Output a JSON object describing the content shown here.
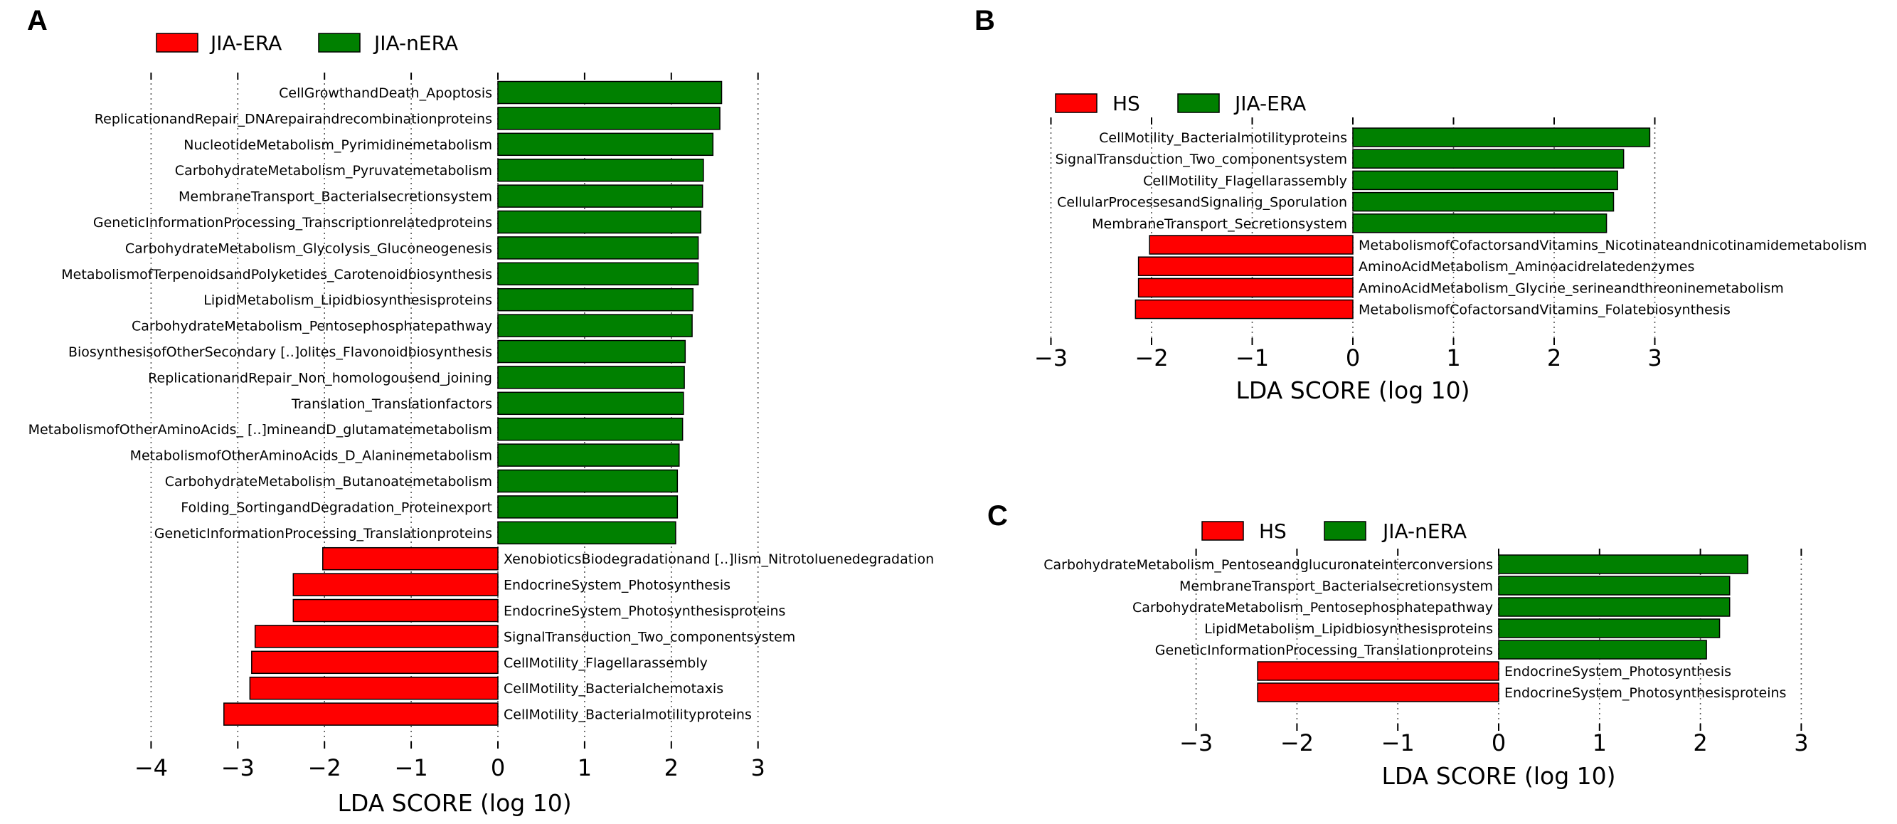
{
  "chart_data": [
    {
      "panel": "A",
      "type": "bar",
      "orientation": "horizontal",
      "xlabel": "LDA SCORE (log 10)",
      "xlim": [
        -4,
        3
      ],
      "xticks": [
        -4,
        -3,
        -2,
        -1,
        0,
        1,
        2,
        3
      ],
      "tick_labels": [
        "−4",
        "−3",
        "−2",
        "−1",
        "0",
        "1",
        "2",
        "3"
      ],
      "legend": [
        {
          "name": "JIA-ERA",
          "color": "#ff0000"
        },
        {
          "name": "JIA-nERA",
          "color": "#008000"
        }
      ],
      "bars": [
        {
          "label": "CellGrowthandDeath_Apoptosis",
          "value": 2.58,
          "group": "JIA-nERA"
        },
        {
          "label": "ReplicationandRepair_DNArepairandrecombinationproteins",
          "value": 2.56,
          "group": "JIA-nERA"
        },
        {
          "label": "NucleotideMetabolism_Pyrimidinemetabolism",
          "value": 2.48,
          "group": "JIA-nERA"
        },
        {
          "label": "CarbohydrateMetabolism_Pyruvatemetabolism",
          "value": 2.37,
          "group": "JIA-nERA"
        },
        {
          "label": "MembraneTransport_Bacterialsecretionsystem",
          "value": 2.36,
          "group": "JIA-nERA"
        },
        {
          "label": "GeneticInformationProcessing_Transcriptionrelatedproteins",
          "value": 2.34,
          "group": "JIA-nERA"
        },
        {
          "label": "CarbohydrateMetabolism_Glycolysis_Gluconeogenesis",
          "value": 2.31,
          "group": "JIA-nERA"
        },
        {
          "label": "MetabolismofTerpenoidsandPolyketides_Carotenoidbiosynthesis",
          "value": 2.31,
          "group": "JIA-nERA"
        },
        {
          "label": "LipidMetabolism_Lipidbiosynthesisproteins",
          "value": 2.25,
          "group": "JIA-nERA"
        },
        {
          "label": "CarbohydrateMetabolism_Pentosephosphatepathway",
          "value": 2.24,
          "group": "JIA-nERA"
        },
        {
          "label": "BiosynthesisofOtherSecondary [..]olites_Flavonoidbiosynthesis",
          "value": 2.16,
          "group": "JIA-nERA"
        },
        {
          "label": "ReplicationandRepair_Non_homologousend_joining",
          "value": 2.15,
          "group": "JIA-nERA"
        },
        {
          "label": "Translation_Translationfactors",
          "value": 2.14,
          "group": "JIA-nERA"
        },
        {
          "label": "MetabolismofOtherAminoAcids_ [..]mineandD_glutamatemetabolism",
          "value": 2.13,
          "group": "JIA-nERA"
        },
        {
          "label": "MetabolismofOtherAminoAcids_D_Alaninemetabolism",
          "value": 2.09,
          "group": "JIA-nERA"
        },
        {
          "label": "CarbohydrateMetabolism_Butanoatemetabolism",
          "value": 2.07,
          "group": "JIA-nERA"
        },
        {
          "label": "Folding_SortingandDegradation_Proteinexport",
          "value": 2.07,
          "group": "JIA-nERA"
        },
        {
          "label": "GeneticInformationProcessing_Translationproteins",
          "value": 2.05,
          "group": "JIA-nERA"
        },
        {
          "label": "XenobioticsBiodegradationand [..]lism_Nitrotoluenedegradation",
          "value": -2.02,
          "group": "JIA-ERA"
        },
        {
          "label": "EndocrineSystem_Photosynthesis",
          "value": -2.36,
          "group": "JIA-ERA"
        },
        {
          "label": "EndocrineSystem_Photosynthesisproteins",
          "value": -2.36,
          "group": "JIA-ERA"
        },
        {
          "label": "SignalTransduction_Two_componentsystem",
          "value": -2.8,
          "group": "JIA-ERA"
        },
        {
          "label": "CellMotility_Flagellarassembly",
          "value": -2.84,
          "group": "JIA-ERA"
        },
        {
          "label": "CellMotility_Bacterialchemotaxis",
          "value": -2.86,
          "group": "JIA-ERA"
        },
        {
          "label": "CellMotility_Bacterialmotilityproteins",
          "value": -3.16,
          "group": "JIA-ERA"
        }
      ]
    },
    {
      "panel": "B",
      "type": "bar",
      "orientation": "horizontal",
      "xlabel": "LDA SCORE (log 10)",
      "xlim": [
        -3,
        3
      ],
      "xticks": [
        -3,
        -2,
        -1,
        0,
        1,
        2,
        3
      ],
      "tick_labels": [
        "−3",
        "−2",
        "−1",
        "0",
        "1",
        "2",
        "3"
      ],
      "legend": [
        {
          "name": "HS",
          "color": "#ff0000"
        },
        {
          "name": "JIA-ERA",
          "color": "#008000"
        }
      ],
      "bars": [
        {
          "label": "CellMotility_Bacterialmotilityproteins",
          "value": 2.95,
          "group": "JIA-ERA"
        },
        {
          "label": "SignalTransduction_Two_componentsystem",
          "value": 2.69,
          "group": "JIA-ERA"
        },
        {
          "label": "CellMotility_Flagellarassembly",
          "value": 2.63,
          "group": "JIA-ERA"
        },
        {
          "label": "CellularProcessesandSignaling_Sporulation",
          "value": 2.59,
          "group": "JIA-ERA"
        },
        {
          "label": "MembraneTransport_Secretionsystem",
          "value": 2.52,
          "group": "JIA-ERA"
        },
        {
          "label": "MetabolismofCofactorsandVitamins_Nicotinateandnicotinamidemetabolism",
          "value": -2.02,
          "group": "HS"
        },
        {
          "label": "AminoAcidMetabolism_Aminoacidrelatedenzymes",
          "value": -2.13,
          "group": "HS"
        },
        {
          "label": "AminoAcidMetabolism_Glycine_serineandthreoninemetabolism",
          "value": -2.13,
          "group": "HS"
        },
        {
          "label": "MetabolismofCofactorsandVitamins_Folatebiosynthesis",
          "value": -2.16,
          "group": "HS"
        }
      ]
    },
    {
      "panel": "C",
      "type": "bar",
      "orientation": "horizontal",
      "xlabel": "LDA SCORE (log 10)",
      "xlim": [
        -3,
        3
      ],
      "xticks": [
        -3,
        -2,
        -1,
        0,
        1,
        2,
        3
      ],
      "tick_labels": [
        "−3",
        "−2",
        "−1",
        "0",
        "1",
        "2",
        "3"
      ],
      "legend": [
        {
          "name": "HS",
          "color": "#ff0000"
        },
        {
          "name": "JIA-nERA",
          "color": "#008000"
        }
      ],
      "bars": [
        {
          "label": "CarbohydrateMetabolism_Pentoseandglucuronateinterconversions",
          "value": 2.47,
          "group": "JIA-nERA"
        },
        {
          "label": "MembraneTransport_Bacterialsecretionsystem",
          "value": 2.29,
          "group": "JIA-nERA"
        },
        {
          "label": "CarbohydrateMetabolism_Pentosephosphatepathway",
          "value": 2.29,
          "group": "JIA-nERA"
        },
        {
          "label": "LipidMetabolism_Lipidbiosynthesisproteins",
          "value": 2.19,
          "group": "JIA-nERA"
        },
        {
          "label": "GeneticInformationProcessing_Translationproteins",
          "value": 2.06,
          "group": "JIA-nERA"
        },
        {
          "label": "EndocrineSystem_Photosynthesis",
          "value": -2.39,
          "group": "HS"
        },
        {
          "label": "EndocrineSystem_Photosynthesisproteins",
          "value": -2.39,
          "group": "HS"
        }
      ]
    }
  ]
}
